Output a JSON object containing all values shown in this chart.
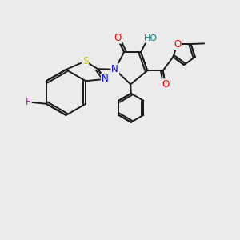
{
  "background_color": "#ebebeb",
  "bond_color": "#1a1a1a",
  "bond_width": 1.4,
  "atoms": {
    "F": {
      "color": "#cc00cc"
    },
    "S": {
      "color": "#cccc00"
    },
    "N": {
      "color": "#0000ee"
    },
    "O": {
      "color": "#ff0000"
    },
    "HO": {
      "color": "#008080"
    },
    "C": {
      "color": "#1a1a1a"
    }
  },
  "scale": 1.0
}
